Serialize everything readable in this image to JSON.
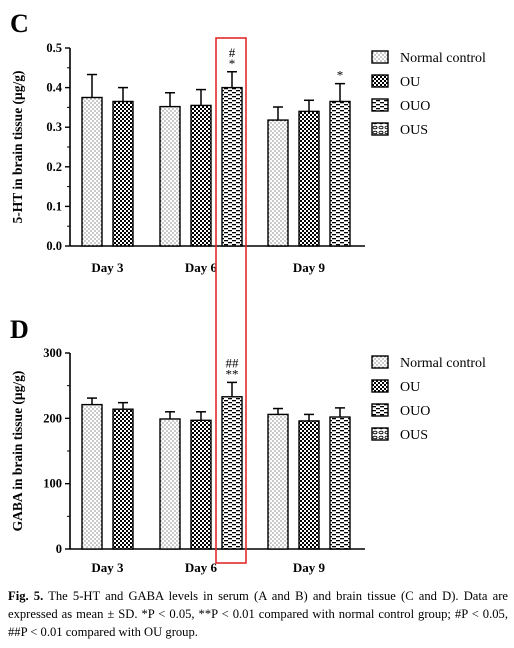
{
  "figure": {
    "caption": {
      "label": "Fig. 5.",
      "text": "The 5-HT and GABA levels in serum (A and B) and brain tissue (C and D). Data are expressed as mean ± SD. *P < 0.05, **P < 0.01 compared with normal control group; #P < 0.05, ##P < 0.01 compared with OU group."
    },
    "colors": {
      "bar_fill": "#ffffff",
      "axis": "#000000",
      "highlight_box": "#e32b2b"
    },
    "legend_entries": [
      "Normal control",
      "OU",
      "OUO",
      "OUS"
    ]
  },
  "chart_data": [
    {
      "panel": "C",
      "type": "bar",
      "ylabel": "5-HT in brain tissue  (μg/g)",
      "categories": [
        "Day 3",
        "Day 6",
        "Day 9"
      ],
      "ylim": [
        0,
        0.5
      ],
      "yticks": [
        "0.0",
        "0.1",
        "0.2",
        "0.3",
        "0.4",
        "0.5"
      ],
      "legend": "top-right",
      "series": [
        {
          "name": "Normal control",
          "pattern": "dots",
          "values": [
            0.375,
            0.352,
            0.318
          ],
          "errors": [
            0.058,
            0.035,
            0.033
          ]
        },
        {
          "name": "OU",
          "pattern": "checker",
          "values": [
            0.365,
            0.355,
            0.34
          ],
          "errors": [
            0.035,
            0.04,
            0.028
          ]
        },
        {
          "name": "OUO",
          "pattern": "dashes",
          "values": [
            null,
            0.4,
            0.365
          ],
          "errors": [
            null,
            0.04,
            0.045
          ]
        },
        {
          "name": "OUS",
          "pattern": "links",
          "values": [
            null,
            null,
            null
          ],
          "errors": [
            null,
            null,
            null
          ]
        }
      ],
      "annotations": [
        {
          "category": "Day 6",
          "series": "OUO",
          "lines": [
            "#",
            "*"
          ]
        },
        {
          "category": "Day 9",
          "series": "OUO",
          "lines": [
            "*"
          ]
        }
      ]
    },
    {
      "panel": "D",
      "type": "bar",
      "ylabel": "GABA in brain tissue (μg/g)",
      "categories": [
        "Day 3",
        "Day 6",
        "Day 9"
      ],
      "ylim": [
        0,
        300
      ],
      "yticks": [
        "0",
        "100",
        "200",
        "300"
      ],
      "legend": "top-right",
      "series": [
        {
          "name": "Normal control",
          "pattern": "dots",
          "values": [
            221,
            199,
            206
          ],
          "errors": [
            10,
            11,
            9
          ]
        },
        {
          "name": "OU",
          "pattern": "checker",
          "values": [
            214,
            197,
            196
          ],
          "errors": [
            10,
            13,
            10
          ]
        },
        {
          "name": "OUO",
          "pattern": "dashes",
          "values": [
            null,
            233,
            202
          ],
          "errors": [
            null,
            22,
            14
          ]
        },
        {
          "name": "OUS",
          "pattern": "links",
          "values": [
            null,
            null,
            null
          ],
          "errors": [
            null,
            null,
            null
          ]
        }
      ],
      "annotations": [
        {
          "category": "Day 6",
          "series": "OUO",
          "lines": [
            "##",
            "**"
          ]
        }
      ]
    }
  ]
}
